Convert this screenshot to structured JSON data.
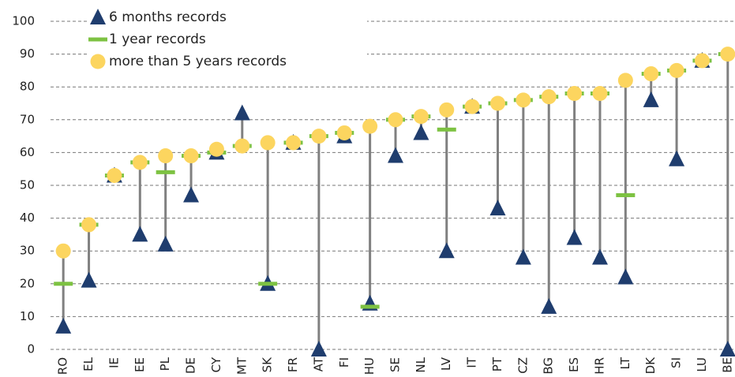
{
  "chart_data": {
    "type": "range-dot",
    "categories": [
      "RO",
      "EL",
      "IE",
      "EE",
      "PL",
      "DE",
      "CY",
      "MT",
      "SK",
      "FR",
      "AT",
      "FI",
      "HU",
      "SE",
      "NL",
      "LV",
      "IT",
      "PT",
      "CZ",
      "BG",
      "ES",
      "HR",
      "LT",
      "DK",
      "SI",
      "LU",
      "BE"
    ],
    "series": [
      {
        "name": "6 months records",
        "color": "#1f3d6e",
        "marker": "triangle",
        "values": [
          7,
          21,
          53,
          35,
          32,
          47,
          60,
          72,
          20,
          63,
          0,
          65,
          14,
          59,
          66,
          30,
          74,
          43,
          28,
          13,
          34,
          28,
          22,
          76,
          58,
          88,
          0
        ]
      },
      {
        "name": "1 year records",
        "color": "#7dc242",
        "marker": "dash",
        "values": [
          20,
          38,
          53,
          57,
          54,
          59,
          60,
          62,
          20,
          63,
          65,
          66,
          13,
          70,
          71,
          67,
          74,
          75,
          76,
          77,
          78,
          78,
          47,
          84,
          85,
          88,
          90
        ]
      },
      {
        "name": "more than 5 years records",
        "color": "#fcd55f",
        "marker": "circle",
        "values": [
          30,
          38,
          53,
          57,
          59,
          59,
          61,
          62,
          63,
          63,
          65,
          66,
          68,
          70,
          71,
          73,
          74,
          75,
          76,
          77,
          78,
          78,
          82,
          84,
          85,
          88,
          90
        ]
      }
    ],
    "range_line_color": "#808080",
    "ylim": [
      0,
      100
    ],
    "yticks": [
      0,
      10,
      20,
      30,
      40,
      50,
      60,
      70,
      80,
      90,
      100
    ],
    "grid": true,
    "legend": "upper left"
  }
}
